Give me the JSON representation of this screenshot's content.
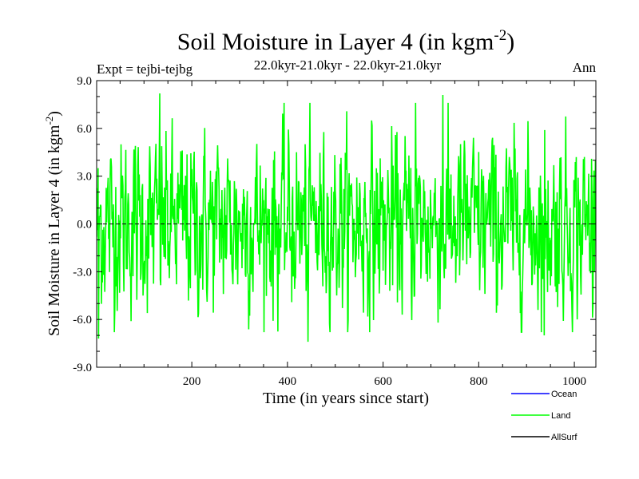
{
  "chart_data": {
    "type": "line",
    "title": "Soil Moisture in Layer 4 (in kgm",
    "title_sup": "-2",
    "title_close": ")",
    "subtitle": "22.0kyr-21.0kyr - 22.0kyr-21.0kyr",
    "expt_label": "Expt = tejbi-tejbg",
    "season_label": "Ann",
    "xlabel": "Time (in years since start)",
    "ylabel": "Soil Moisture in Layer 4 (in kgm",
    "ylabel_sup": "-2",
    "ylabel_close": ")",
    "xlim": [
      1,
      1045
    ],
    "ylim": [
      -9,
      9
    ],
    "x_ticks": [
      200,
      400,
      600,
      800,
      1000
    ],
    "x_tick_labels": [
      "200",
      "400",
      "600",
      "800",
      "1000"
    ],
    "y_ticks": [
      -9,
      -6,
      -3,
      0,
      3,
      6,
      9
    ],
    "y_tick_labels": [
      "-9.0",
      "-6.0",
      "-3.0",
      "0.0",
      "3.0",
      "6.0",
      "9.0"
    ],
    "zero_line": true,
    "series": [
      {
        "name": "Ocean",
        "color": "#0000ff",
        "values": []
      },
      {
        "name": "Land",
        "color": "#00ff00",
        "generated": true,
        "n_points": 1045,
        "amplitude_sd": 2.6,
        "value_range": [
          -7.4,
          8.2
        ],
        "peaks": [
          [
            5,
            -7.2
          ],
          [
            133,
            8.2
          ],
          [
            443,
            -7.4
          ],
          [
            725,
            8.1
          ],
          [
            668,
            7.6
          ],
          [
            937,
            -7.0
          ]
        ]
      },
      {
        "name": "AllSurf",
        "color": "#000000",
        "values": []
      }
    ],
    "legend": [
      {
        "name": "Ocean",
        "color": "#0000ff"
      },
      {
        "name": "Land",
        "color": "#00ff00"
      },
      {
        "name": "AllSurf",
        "color": "#000000"
      }
    ]
  }
}
